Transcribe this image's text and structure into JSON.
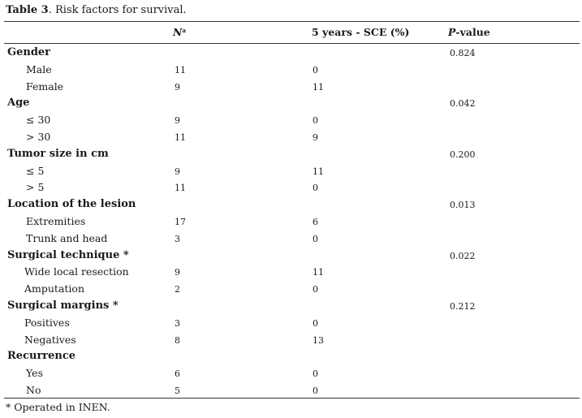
{
  "caption": {
    "label": "Table 3",
    "text": ". Risk factors for survival."
  },
  "header": {
    "n_label": "N",
    "n_sup": "a",
    "sce_label": "5 years - SCE (%)",
    "p_italic": "P",
    "p_rest": "-value"
  },
  "groups": [
    {
      "label": "Gender",
      "p_value": "0.824",
      "rows": [
        {
          "label": "Male",
          "n": "11",
          "sce": "0"
        },
        {
          "label": "Female",
          "n": "9",
          "sce": "11"
        }
      ]
    },
    {
      "label": "Age",
      "p_value": "0.042",
      "rows": [
        {
          "label": "≤ 30",
          "n": "9",
          "sce": "0"
        },
        {
          "label": "> 30",
          "n": "11",
          "sce": "9"
        }
      ]
    },
    {
      "label": "Tumor size in cm",
      "p_value": "0.200",
      "rows": [
        {
          "label": "≤ 5",
          "n": "9",
          "sce": "11"
        },
        {
          "label": "> 5",
          "n": "11",
          "sce": "0"
        }
      ]
    },
    {
      "label": "Location of the lesion",
      "p_value": "0.013",
      "rows": [
        {
          "label": "Extremities",
          "n": "17",
          "sce": "6"
        },
        {
          "label": "Trunk and head",
          "n": "3",
          "sce": "0"
        }
      ]
    },
    {
      "label": "Surgical technique *",
      "p_value": "0.022",
      "rows": [
        {
          "label": "Wide local resection",
          "n": "9",
          "sce": "11"
        },
        {
          "label": "Amputation",
          "n": "2",
          "sce": "0"
        }
      ]
    },
    {
      "label": "Surgical margins *",
      "p_value": "0.212",
      "rows": [
        {
          "label": "Positives",
          "n": "3",
          "sce": "0"
        },
        {
          "label": "Negatives",
          "n": "8",
          "sce": "13"
        }
      ]
    },
    {
      "label": "Recurrence",
      "p_value": "",
      "rows": [
        {
          "label": "Yes",
          "n": "6",
          "sce": "0"
        },
        {
          "label": "No",
          "n": "5",
          "sce": "0"
        }
      ]
    }
  ],
  "footnote": "* Operated in INEN."
}
